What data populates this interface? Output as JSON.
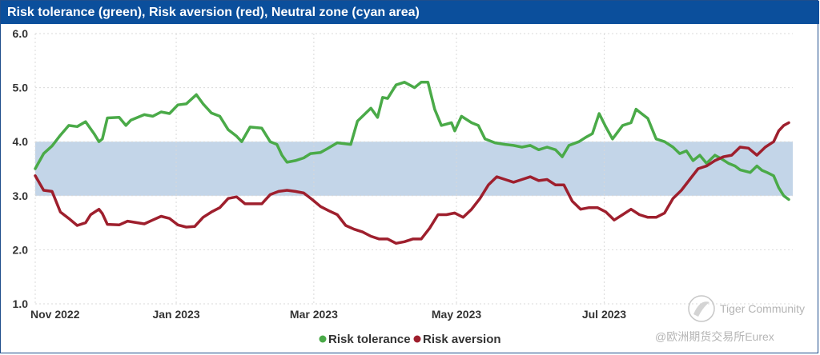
{
  "chart_data": {
    "type": "line",
    "title": "Risk tolerance (green), Risk aversion (red), Neutral zone (cyan area)",
    "xlabel": "",
    "ylabel": "",
    "ylim": [
      1.0,
      6.0
    ],
    "yticks": [
      "1.0",
      "2.0",
      "3.0",
      "4.0",
      "5.0",
      "6.0"
    ],
    "xlim": [
      0,
      43.5
    ],
    "xticks": [
      {
        "label": "Nov 2022",
        "x": 0
      },
      {
        "label": "Jan 2023",
        "x": 8.4
      },
      {
        "label": "Mar 2023",
        "x": 16.6
      },
      {
        "label": "May 2023",
        "x": 25.1
      },
      {
        "label": "Jul 2023",
        "x": 33.9
      }
    ],
    "neutral_zone": {
      "y0": 3.0,
      "y1": 4.0,
      "color": "#c3d5e8"
    },
    "grid": true,
    "legend_position": "bottom",
    "series": [
      {
        "name": "Risk tolerance",
        "color": "#4aaa48",
        "points": [
          [
            0,
            3.5
          ],
          [
            0.5,
            3.78
          ],
          [
            1,
            3.92
          ],
          [
            1.5,
            4.12
          ],
          [
            2,
            4.3
          ],
          [
            2.5,
            4.28
          ],
          [
            3,
            4.37
          ],
          [
            3.5,
            4.15
          ],
          [
            3.8,
            4.0
          ],
          [
            4,
            4.05
          ],
          [
            4.3,
            4.44
          ],
          [
            5,
            4.45
          ],
          [
            5.4,
            4.3
          ],
          [
            5.7,
            4.4
          ],
          [
            6.5,
            4.5
          ],
          [
            7,
            4.47
          ],
          [
            7.5,
            4.55
          ],
          [
            8,
            4.52
          ],
          [
            8.5,
            4.68
          ],
          [
            9,
            4.7
          ],
          [
            9.6,
            4.87
          ],
          [
            10,
            4.7
          ],
          [
            10.5,
            4.53
          ],
          [
            11,
            4.47
          ],
          [
            11.5,
            4.22
          ],
          [
            12,
            4.1
          ],
          [
            12.3,
            4.0
          ],
          [
            12.8,
            4.27
          ],
          [
            13.5,
            4.25
          ],
          [
            14,
            4.0
          ],
          [
            14.4,
            3.95
          ],
          [
            14.7,
            3.75
          ],
          [
            15,
            3.62
          ],
          [
            15.5,
            3.65
          ],
          [
            16,
            3.7
          ],
          [
            16.4,
            3.78
          ],
          [
            17,
            3.8
          ],
          [
            17.4,
            3.87
          ],
          [
            18,
            3.98
          ],
          [
            18.8,
            3.95
          ],
          [
            19.2,
            4.38
          ],
          [
            19.6,
            4.5
          ],
          [
            20,
            4.62
          ],
          [
            20.4,
            4.45
          ],
          [
            20.7,
            4.82
          ],
          [
            21,
            4.8
          ],
          [
            21.5,
            5.05
          ],
          [
            22,
            5.1
          ],
          [
            22.3,
            5.05
          ],
          [
            22.6,
            5.0
          ],
          [
            23,
            5.1
          ],
          [
            23.4,
            5.1
          ],
          [
            23.8,
            4.6
          ],
          [
            24.2,
            4.3
          ],
          [
            24.8,
            4.35
          ],
          [
            25,
            4.2
          ],
          [
            25.4,
            4.47
          ],
          [
            26,
            4.35
          ],
          [
            26.4,
            4.3
          ],
          [
            26.8,
            4.05
          ],
          [
            27.4,
            3.98
          ],
          [
            28,
            3.95
          ],
          [
            28.5,
            3.93
          ],
          [
            29,
            3.9
          ],
          [
            29.5,
            3.93
          ],
          [
            30,
            3.85
          ],
          [
            30.5,
            3.9
          ],
          [
            31,
            3.85
          ],
          [
            31.4,
            3.72
          ],
          [
            31.8,
            3.93
          ],
          [
            32.4,
            4.0
          ],
          [
            32.8,
            4.08
          ],
          [
            33.2,
            4.15
          ],
          [
            33.6,
            4.52
          ],
          [
            34,
            4.27
          ],
          [
            34.4,
            4.05
          ],
          [
            35,
            4.3
          ],
          [
            35.5,
            4.35
          ],
          [
            35.8,
            4.6
          ],
          [
            36,
            4.55
          ],
          [
            36.5,
            4.43
          ],
          [
            37,
            4.05
          ],
          [
            37.5,
            4.0
          ],
          [
            38,
            3.9
          ],
          [
            38.4,
            3.78
          ],
          [
            38.8,
            3.83
          ],
          [
            39.2,
            3.65
          ],
          [
            39.6,
            3.75
          ],
          [
            40,
            3.6
          ],
          [
            40.5,
            3.75
          ],
          [
            40.9,
            3.68
          ],
          [
            41.3,
            3.6
          ],
          [
            41.7,
            3.55
          ],
          [
            42,
            3.48
          ],
          [
            42.6,
            3.43
          ],
          [
            43,
            3.55
          ],
          [
            43.3,
            3.47
          ],
          [
            43.6,
            3.43
          ],
          [
            44,
            3.37
          ],
          [
            44.3,
            3.15
          ],
          [
            44.6,
            3.0
          ],
          [
            44.9,
            2.93
          ]
        ]
      },
      {
        "name": "Risk aversion",
        "color": "#9e1f2d",
        "points": [
          [
            0,
            3.37
          ],
          [
            0.5,
            3.1
          ],
          [
            1,
            3.08
          ],
          [
            1.5,
            2.7
          ],
          [
            2,
            2.58
          ],
          [
            2.5,
            2.45
          ],
          [
            3,
            2.5
          ],
          [
            3.3,
            2.65
          ],
          [
            3.8,
            2.75
          ],
          [
            4,
            2.67
          ],
          [
            4.3,
            2.47
          ],
          [
            5,
            2.46
          ],
          [
            5.5,
            2.53
          ],
          [
            6.5,
            2.48
          ],
          [
            7,
            2.55
          ],
          [
            7.5,
            2.62
          ],
          [
            8,
            2.58
          ],
          [
            8.5,
            2.46
          ],
          [
            9,
            2.42
          ],
          [
            9.5,
            2.43
          ],
          [
            10,
            2.6
          ],
          [
            10.5,
            2.7
          ],
          [
            11,
            2.78
          ],
          [
            11.5,
            2.95
          ],
          [
            12,
            2.98
          ],
          [
            12.5,
            2.85
          ],
          [
            13.5,
            2.85
          ],
          [
            14,
            3.02
          ],
          [
            14.5,
            3.08
          ],
          [
            15,
            3.1
          ],
          [
            15.5,
            3.08
          ],
          [
            16,
            3.05
          ],
          [
            16.5,
            2.93
          ],
          [
            17,
            2.8
          ],
          [
            17.5,
            2.72
          ],
          [
            18,
            2.65
          ],
          [
            18.5,
            2.45
          ],
          [
            19,
            2.38
          ],
          [
            19.5,
            2.33
          ],
          [
            20,
            2.25
          ],
          [
            20.5,
            2.2
          ],
          [
            21,
            2.2
          ],
          [
            21.5,
            2.12
          ],
          [
            22,
            2.15
          ],
          [
            22.5,
            2.2
          ],
          [
            23,
            2.2
          ],
          [
            23.5,
            2.4
          ],
          [
            24,
            2.65
          ],
          [
            24.5,
            2.65
          ],
          [
            25,
            2.68
          ],
          [
            25.5,
            2.6
          ],
          [
            26,
            2.75
          ],
          [
            26.5,
            2.95
          ],
          [
            27,
            3.2
          ],
          [
            27.5,
            3.35
          ],
          [
            28,
            3.3
          ],
          [
            28.5,
            3.25
          ],
          [
            29,
            3.3
          ],
          [
            29.5,
            3.35
          ],
          [
            30,
            3.28
          ],
          [
            30.5,
            3.3
          ],
          [
            31,
            3.2
          ],
          [
            31.5,
            3.2
          ],
          [
            32,
            2.9
          ],
          [
            32.5,
            2.75
          ],
          [
            33,
            2.78
          ],
          [
            33.5,
            2.78
          ],
          [
            34,
            2.7
          ],
          [
            34.5,
            2.55
          ],
          [
            35,
            2.65
          ],
          [
            35.5,
            2.75
          ],
          [
            36,
            2.65
          ],
          [
            36.5,
            2.6
          ],
          [
            37,
            2.6
          ],
          [
            37.5,
            2.68
          ],
          [
            38,
            2.95
          ],
          [
            38.5,
            3.1
          ],
          [
            39,
            3.3
          ],
          [
            39.5,
            3.5
          ],
          [
            40,
            3.55
          ],
          [
            40.5,
            3.65
          ],
          [
            41,
            3.72
          ],
          [
            41.5,
            3.75
          ],
          [
            42,
            3.9
          ],
          [
            42.5,
            3.88
          ],
          [
            43,
            3.75
          ],
          [
            43.5,
            3.9
          ],
          [
            44,
            4.0
          ],
          [
            44.3,
            4.2
          ],
          [
            44.6,
            4.3
          ],
          [
            44.9,
            4.35
          ]
        ]
      }
    ]
  },
  "watermark": {
    "brand": "Tiger Community",
    "credit": "@欧洲期货交易所Eurex"
  }
}
